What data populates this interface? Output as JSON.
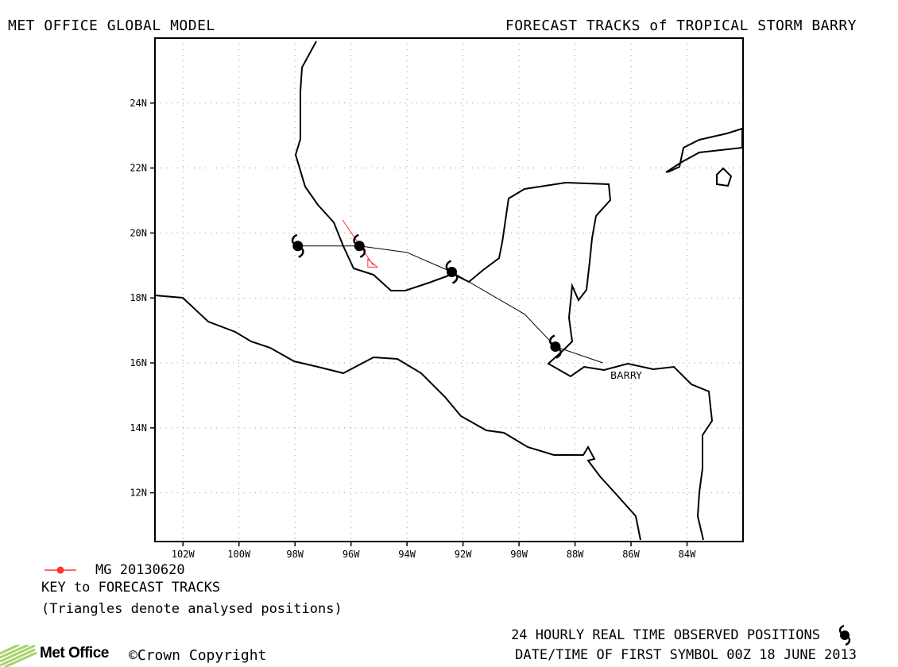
{
  "header": {
    "left_title": "MET OFFICE GLOBAL MODEL",
    "right_title": "FORECAST TRACKS of TROPICAL STORM BARRY"
  },
  "map": {
    "lon_range": [
      -103,
      -82
    ],
    "lat_range": [
      10.5,
      26
    ],
    "lon_ticks": [
      "102W",
      "100W",
      "98W",
      "96W",
      "94W",
      "92W",
      "90W",
      "88W",
      "86W",
      "84W"
    ],
    "lat_ticks": [
      "12N",
      "14N",
      "16N",
      "18N",
      "20N",
      "22N",
      "24N"
    ],
    "grid": true,
    "storm_label": "BARRY",
    "observed_track": [
      [
        -87.0,
        16.0
      ],
      [
        -88.7,
        16.5
      ],
      [
        -89.8,
        17.5
      ],
      [
        -92.4,
        18.8
      ],
      [
        -94.0,
        19.4
      ],
      [
        -95.7,
        19.6
      ],
      [
        -97.9,
        19.6
      ]
    ],
    "observed_symbols": [
      [
        -88.7,
        16.5
      ],
      [
        -92.4,
        18.8
      ],
      [
        -95.7,
        19.6
      ],
      [
        -97.9,
        19.6
      ]
    ],
    "forecast_track": {
      "name": "MG 20130620",
      "color": "#ff3333",
      "points": [
        [
          -96.3,
          20.4
        ],
        [
          -95.2,
          19.0
        ]
      ]
    }
  },
  "key": {
    "model_label": "MG 20130620",
    "title": "KEY to FORECAST TRACKS",
    "note": "(Triangles denote analysed positions)"
  },
  "footer": {
    "observed_text": "24 HOURLY REAL TIME OBSERVED POSITIONS",
    "date_text": "DATE/TIME OF FIRST SYMBOL 00Z 18 JUNE 2013",
    "logo_text": "Met Office",
    "copyright_text": "©Crown Copyright"
  }
}
